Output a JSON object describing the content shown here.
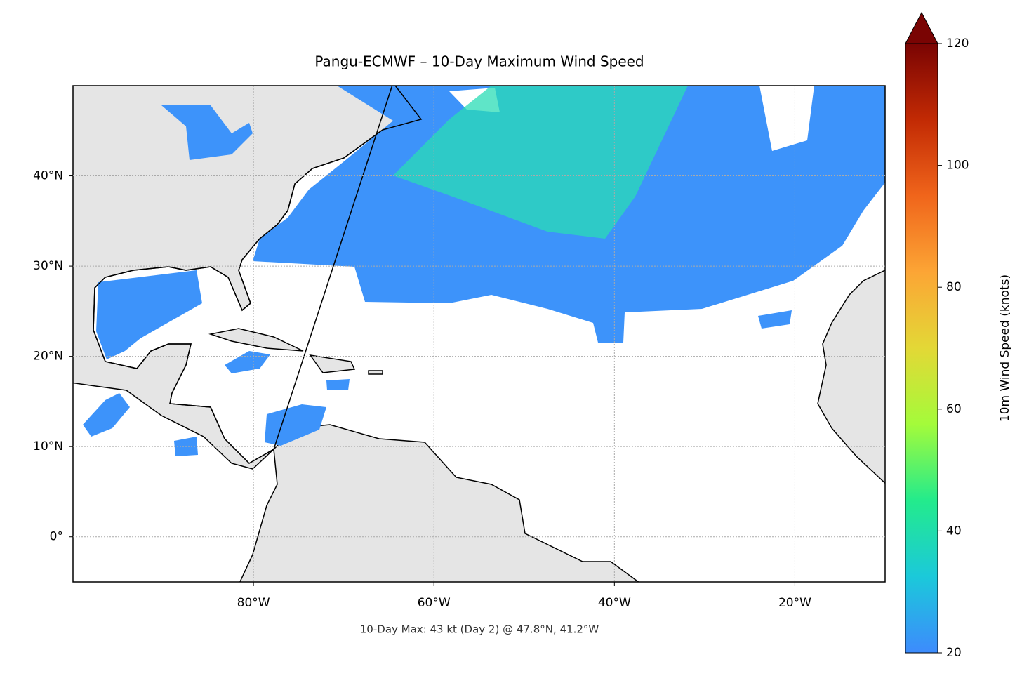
{
  "chart_data": {
    "type": "map",
    "title": "Pangu-ECMWF – 10-Day Maximum Wind Speed",
    "xlim": [
      -100,
      -10
    ],
    "ylim": [
      -5,
      50
    ],
    "xticks": [
      {
        "value": -80,
        "label": "80°W"
      },
      {
        "value": -60,
        "label": "60°W"
      },
      {
        "value": -40,
        "label": "40°W"
      },
      {
        "value": -20,
        "label": "20°W"
      }
    ],
    "yticks": [
      {
        "value": 0,
        "label": "0°"
      },
      {
        "value": 10,
        "label": "10°N"
      },
      {
        "value": 20,
        "label": "20°N"
      },
      {
        "value": 30,
        "label": "30°N"
      },
      {
        "value": 40,
        "label": "40°N"
      }
    ],
    "grid": true,
    "colorbar": {
      "label": "10m Wind Speed (knots)",
      "clim": [
        20,
        120
      ],
      "ticks": [
        20,
        40,
        60,
        80,
        100,
        120
      ],
      "colors": [
        "#3d8bfd",
        "#1bc9da",
        "#23eb8c",
        "#a4fb3a",
        "#e3d836",
        "#fca535",
        "#f0651b",
        "#c22a04",
        "#7a0403"
      ]
    },
    "annotation": "10-Day Max: 43 kt (Day 2) @ 47.8°N, 41.2°W"
  }
}
